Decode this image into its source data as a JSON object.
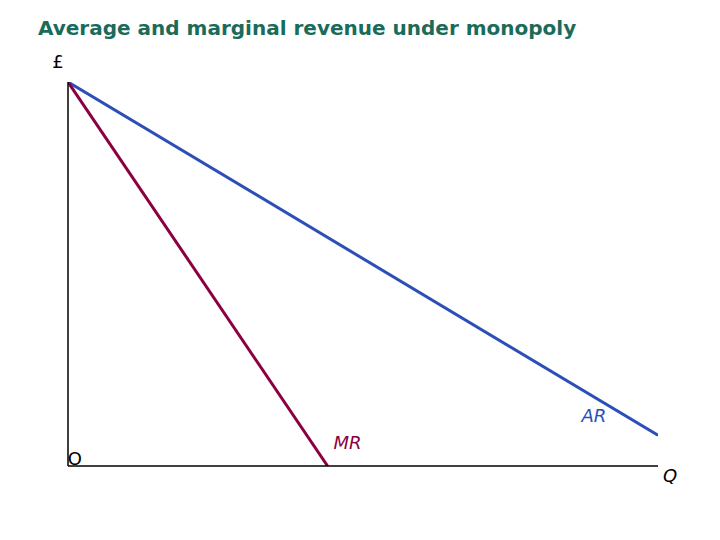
{
  "chart_data": {
    "type": "line",
    "title": "Average and marginal revenue under monopoly",
    "title_color": "#1a6b5a",
    "x_label": "Q",
    "y_label": "£",
    "xlim": [
      0,
      1
    ],
    "ylim": [
      0,
      1
    ],
    "xticks": [],
    "yticks": [],
    "tick_labels": false,
    "series": [
      {
        "x": [
          0.0,
          1.0
        ],
        "values": [
          1.0,
          0.08
        ],
        "color": "#2b4eb8"
      },
      {
        "x": [
          0.0,
          0.44
        ],
        "values": [
          1.0,
          0.0
        ],
        "color": "#8b0040"
      }
    ],
    "annotations": [
      {
        "text": "AR",
        "x": 0.86,
        "y": 0.13,
        "color": "#2b4eb8"
      },
      {
        "text": "MR",
        "x": 0.44,
        "y": 0.06,
        "color": "#8b0040"
      },
      {
        "text": "O",
        "x": 0,
        "y": 0
      }
    ]
  }
}
